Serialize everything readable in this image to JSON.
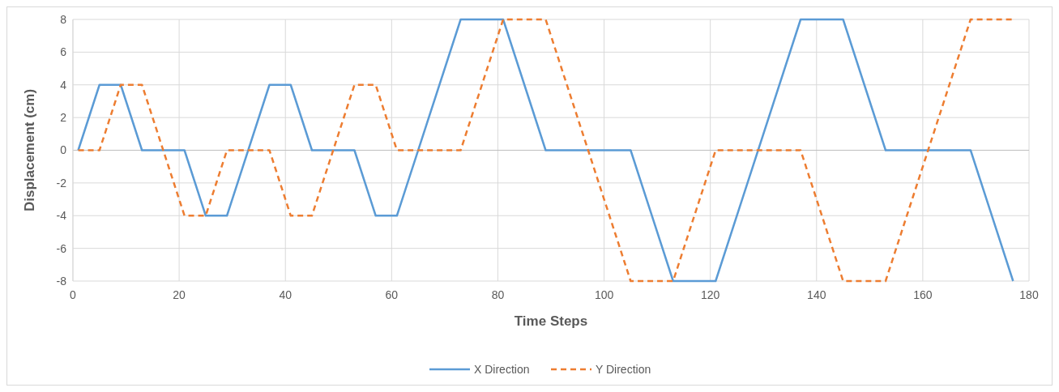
{
  "chart_data": {
    "type": "line",
    "xlabel": "Time Steps",
    "ylabel": "Displacement (cm)",
    "xlim": [
      0,
      180
    ],
    "xticks": [
      0,
      20,
      40,
      60,
      80,
      100,
      120,
      140,
      160,
      180
    ],
    "ylim": [
      -8,
      8
    ],
    "yticks": [
      -8,
      -6,
      -4,
      -2,
      0,
      2,
      4,
      6,
      8
    ],
    "grid": true,
    "legend": "bottom",
    "marker": "none",
    "series": [
      {
        "name": "X Direction",
        "color": "#5b9bd5",
        "line_style": "solid",
        "x": [
          1,
          5,
          9,
          13,
          21,
          25,
          29,
          37,
          41,
          45,
          53,
          57,
          61,
          73,
          81,
          89,
          105,
          113,
          121,
          137,
          145,
          153,
          169,
          177
        ],
        "values": [
          0,
          4,
          4,
          0,
          0,
          -4,
          -4,
          4,
          4,
          0,
          0,
          -4,
          -4,
          8,
          8,
          0,
          0,
          -8,
          -8,
          8,
          8,
          0,
          0,
          -8
        ]
      },
      {
        "name": "Y Direction",
        "color": "#ed7d31",
        "line_style": "dashed",
        "x": [
          1,
          5,
          9,
          13,
          21,
          25,
          29,
          37,
          41,
          45,
          53,
          57,
          61,
          73,
          81,
          89,
          105,
          113,
          121,
          137,
          145,
          153,
          169,
          177
        ],
        "values": [
          0,
          0,
          4,
          4,
          -4,
          -4,
          0,
          0,
          -4,
          -4,
          4,
          4,
          0,
          0,
          8,
          8,
          -8,
          -8,
          0,
          0,
          -8,
          -8,
          8,
          8
        ]
      }
    ]
  }
}
